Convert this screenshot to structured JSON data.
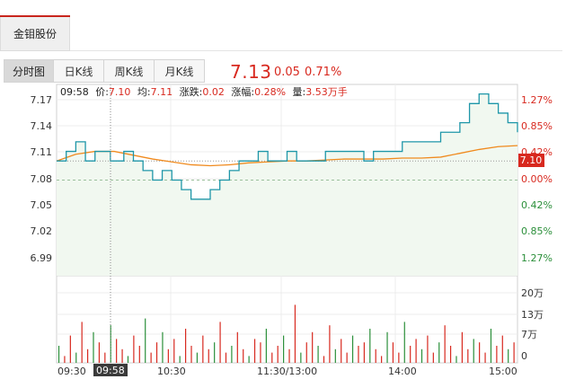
{
  "stock": {
    "name": "金钼股份",
    "price": "7.13",
    "change": "0.05",
    "change_pct": "0.71%"
  },
  "tabs": [
    {
      "label": "分时图",
      "active": true
    },
    {
      "label": "日K线",
      "active": false
    },
    {
      "label": "周K线",
      "active": false
    },
    {
      "label": "月K线",
      "active": false
    }
  ],
  "info": {
    "time": "09:58",
    "price_label": "价:",
    "price": "7.10",
    "avg_label": "均:",
    "avg": "7.11",
    "change_label": "涨跌:",
    "change": "0.02",
    "pct_label": "涨幅:",
    "pct": "0.28%",
    "vol_label": "量:",
    "vol": "3.53万手"
  },
  "axes": {
    "price_ticks": [
      "7.17",
      "7.14",
      "7.11",
      "7.08",
      "7.05",
      "7.02",
      "6.99"
    ],
    "pct_ticks": [
      "1.27%",
      "0.85%",
      "0.42%",
      "0.00%",
      "0.42%",
      "0.85%",
      "1.27%"
    ],
    "volume_ticks": [
      "20万",
      "13万",
      "7万",
      "0"
    ],
    "time_ticks": [
      "09:30",
      "09:58",
      "10:30",
      "11:30/13:00",
      "14:00",
      "15:00"
    ],
    "crosshair_price": "7.10"
  },
  "colors": {
    "up": "#d8291f",
    "down": "#2b8f3a",
    "price_line": "#1e96a8",
    "avg_line": "#f08a1e",
    "fill": "#f1f8f0"
  },
  "chart_data": {
    "type": "line",
    "x_range": [
      "09:30",
      "15:00"
    ],
    "prev_close": 7.08,
    "ylim": [
      6.98,
      7.18
    ],
    "series": [
      {
        "name": "价",
        "x": [
          0,
          5,
          10,
          15,
          20,
          25,
          28,
          30,
          35,
          40,
          45,
          50,
          55,
          60,
          65,
          70,
          75,
          80,
          85,
          90,
          95,
          100,
          105,
          110,
          115,
          120,
          125,
          130,
          135,
          140,
          145,
          150,
          155,
          160,
          165,
          170,
          175,
          180,
          185,
          190,
          195,
          200,
          205,
          210,
          215,
          220,
          225,
          230,
          235,
          240
        ],
        "values": [
          7.1,
          7.11,
          7.12,
          7.1,
          7.11,
          7.11,
          7.1,
          7.1,
          7.11,
          7.1,
          7.09,
          7.08,
          7.09,
          7.08,
          7.07,
          7.06,
          7.06,
          7.07,
          7.08,
          7.09,
          7.1,
          7.1,
          7.11,
          7.1,
          7.1,
          7.11,
          7.1,
          7.1,
          7.1,
          7.11,
          7.11,
          7.11,
          7.11,
          7.1,
          7.11,
          7.11,
          7.11,
          7.12,
          7.12,
          7.12,
          7.12,
          7.13,
          7.13,
          7.14,
          7.16,
          7.17,
          7.16,
          7.15,
          7.14,
          7.13
        ]
      },
      {
        "name": "均",
        "x": [
          0,
          10,
          20,
          30,
          40,
          50,
          60,
          70,
          80,
          90,
          100,
          110,
          120,
          130,
          140,
          150,
          160,
          170,
          180,
          190,
          200,
          210,
          220,
          230,
          240
        ],
        "values": [
          7.1,
          7.107,
          7.11,
          7.11,
          7.106,
          7.102,
          7.099,
          7.096,
          7.095,
          7.096,
          7.098,
          7.099,
          7.1,
          7.1,
          7.101,
          7.102,
          7.102,
          7.102,
          7.103,
          7.103,
          7.104,
          7.108,
          7.112,
          7.115,
          7.116
        ]
      }
    ],
    "volume": [
      5,
      2,
      8,
      3,
      12,
      4,
      9,
      6,
      3,
      11,
      7,
      4,
      2,
      8,
      5,
      13,
      3,
      6,
      9,
      4,
      7,
      2,
      10,
      5,
      3,
      8,
      4,
      6,
      12,
      3,
      5,
      9,
      4,
      2,
      7,
      6,
      10,
      3,
      5,
      8,
      4,
      17,
      3,
      6,
      9,
      5,
      2,
      11,
      4,
      7,
      3,
      8,
      5,
      6,
      10,
      4,
      2,
      9,
      6,
      3,
      12,
      5,
      7,
      4,
      8,
      3,
      6,
      11,
      5,
      2,
      9,
      4,
      7,
      6,
      3,
      10,
      5,
      8,
      4,
      6
    ]
  }
}
